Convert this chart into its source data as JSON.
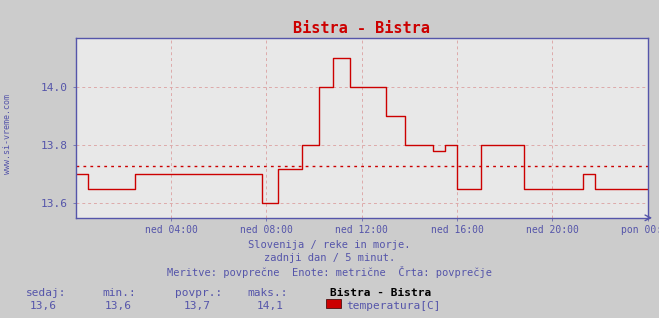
{
  "title": "Bistra - Bistra",
  "title_color": "#cc0000",
  "bg_color": "#cccccc",
  "plot_bg_color": "#e8e8e8",
  "grid_color": "#cc9999",
  "grid_color2": "#ddaaaa",
  "axis_color": "#5555aa",
  "text_color": "#5555aa",
  "watermark": "www.si-vreme.com",
  "ylim": [
    13.55,
    14.17
  ],
  "yticks": [
    13.6,
    13.8,
    14.0
  ],
  "avg_line": 13.73,
  "avg_line_color": "#cc0000",
  "xtick_labels": [
    "ned 04:00",
    "ned 08:00",
    "ned 12:00",
    "ned 16:00",
    "ned 20:00",
    "pon 00:00"
  ],
  "xtick_positions": [
    4,
    8,
    12,
    16,
    20,
    24
  ],
  "footnote_line1": "Slovenija / reke in morje.",
  "footnote_line2": "zadnji dan / 5 minut.",
  "footnote_line3": "Meritve: povprečne  Enote: metrične  Črta: povprečje",
  "legend_station": "Bistra - Bistra",
  "legend_label": "temperatura[C]",
  "legend_color": "#cc0000",
  "stat_sedaj": "13,6",
  "stat_min": "13,6",
  "stat_povpr": "13,7",
  "stat_maks": "14,1",
  "line_color": "#cc0000",
  "x": [
    0,
    0.5,
    0.5,
    2.5,
    2.5,
    7.8,
    7.8,
    8.5,
    8.5,
    9.5,
    9.5,
    10.2,
    10.2,
    10.8,
    10.8,
    11.5,
    11.5,
    13.0,
    13.0,
    13.8,
    13.8,
    15.0,
    15.0,
    15.5,
    15.5,
    16.0,
    16.0,
    17.0,
    17.0,
    18.8,
    18.8,
    21.3,
    21.3,
    21.8,
    21.8,
    24.0
  ],
  "y": [
    13.7,
    13.7,
    13.65,
    13.65,
    13.7,
    13.7,
    13.6,
    13.6,
    13.72,
    13.72,
    13.8,
    13.8,
    14.0,
    14.0,
    14.1,
    14.1,
    14.0,
    14.0,
    13.9,
    13.9,
    13.8,
    13.8,
    13.78,
    13.78,
    13.8,
    13.8,
    13.65,
    13.65,
    13.8,
    13.8,
    13.65,
    13.65,
    13.7,
    13.7,
    13.65,
    13.65
  ]
}
